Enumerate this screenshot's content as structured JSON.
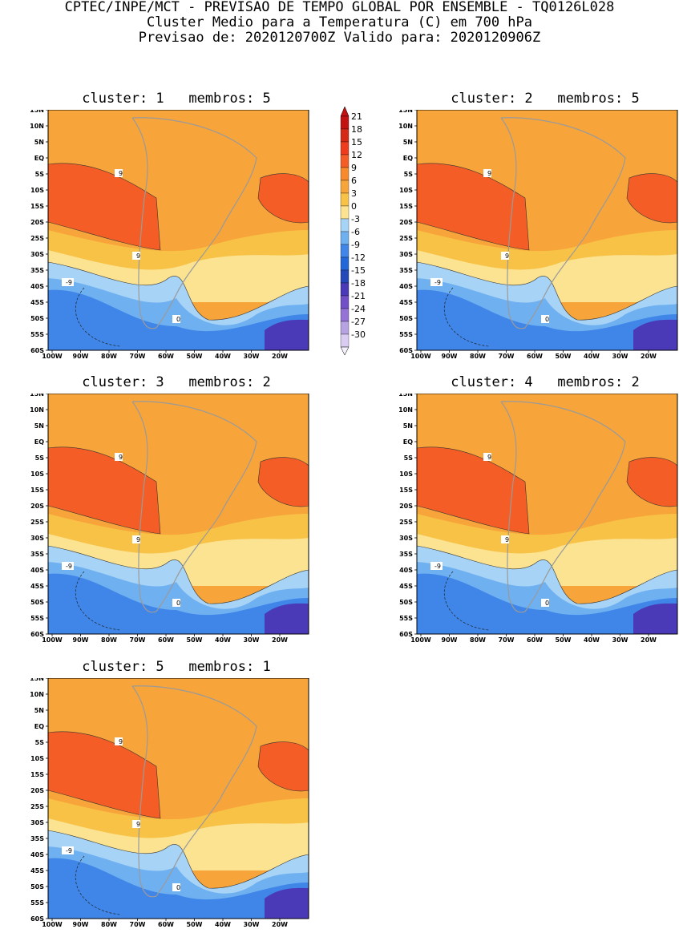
{
  "header": {
    "line1": "CPTEC/INPE/MCT - PREVISAO DE TEMPO GLOBAL POR ENSEMBLE - TQ0126L028",
    "line2": "Cluster Medio para a Temperatura (C) em 700 hPa",
    "line3": "Previsao de: 2020120700Z   Valido para: 2020120906Z"
  },
  "panels": [
    {
      "title": "cluster: 1   membros: 5"
    },
    {
      "title": "cluster: 2   membros: 5"
    },
    {
      "title": "cluster: 3   membros: 2"
    },
    {
      "title": "cluster: 4   membros: 2"
    },
    {
      "title": "cluster: 5   membros: 1"
    }
  ],
  "axes": {
    "lat_labels": [
      "15N",
      "10N",
      "5N",
      "EQ",
      "5S",
      "10S",
      "15S",
      "20S",
      "25S",
      "30S",
      "35S",
      "40S",
      "45S",
      "50S",
      "55S",
      "60S"
    ],
    "lon_labels": [
      "100W",
      "90W",
      "80W",
      "70W",
      "60W",
      "50W",
      "40W",
      "30W",
      "20W"
    ]
  },
  "colorbar": {
    "labels": [
      "21",
      "18",
      "15",
      "12",
      "9",
      "6",
      "3",
      "0",
      "-3",
      "-6",
      "-9",
      "-12",
      "-15",
      "-18",
      "-21",
      "-24",
      "-27",
      "-30"
    ],
    "colors": [
      "#c21212",
      "#d62a16",
      "#ee3c1c",
      "#f45e26",
      "#f68a2c",
      "#f7a43a",
      "#f8c246",
      "#fbe392",
      "#a7d3f6",
      "#6fb0f0",
      "#3f86e8",
      "#2368d8",
      "#2549b8",
      "#4a3ab8",
      "#7250c8",
      "#9573d6",
      "#b6a3e2",
      "#d8ccf0"
    ]
  },
  "contour_labels": [
    "9",
    "0",
    "-9"
  ],
  "colors": {
    "background": "#ffffff",
    "warm": "#f68a2c",
    "hot": "#f45e26",
    "cold": "#2368d8",
    "coast": "#9a9a9a"
  }
}
